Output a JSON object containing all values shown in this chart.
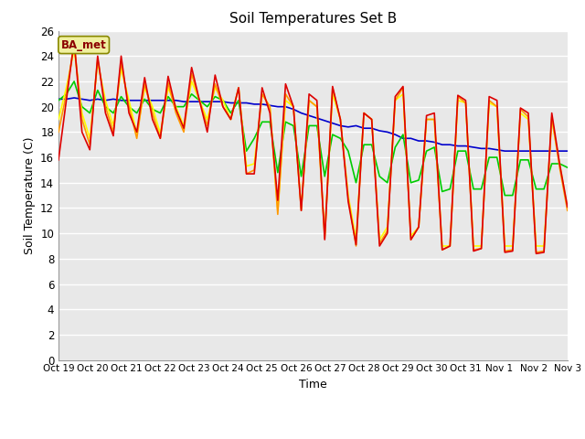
{
  "title": "Soil Temperatures Set B",
  "xlabel": "Time",
  "ylabel": "Soil Temperature (C)",
  "ylim": [
    0,
    26
  ],
  "yticks": [
    0,
    2,
    4,
    6,
    8,
    10,
    12,
    14,
    16,
    18,
    20,
    22,
    24,
    26
  ],
  "line_colors": {
    "-2cm": "#dd0000",
    "-4cm": "#ff9900",
    "-8cm": "#ffff00",
    "-16cm": "#00cc00",
    "-32cm": "#0000cc"
  },
  "legend_label": "BA_met",
  "xtick_labels": [
    "Oct 19",
    "Oct 20",
    "Oct 21",
    "Oct 22",
    "Oct 23",
    "Oct 24",
    "Oct 25",
    "Oct 26",
    "Oct 27",
    "Oct 28",
    "Oct 29",
    "Oct 30",
    "Oct 31",
    "Nov 1",
    "Nov 2",
    "Nov 3"
  ],
  "n_days": 15,
  "series": {
    "-2cm": [
      15.8,
      20.5,
      25.2,
      18.0,
      16.6,
      24.0,
      19.5,
      17.7,
      24.0,
      19.5,
      18.0,
      22.3,
      19.0,
      17.5,
      22.4,
      19.8,
      18.3,
      23.1,
      20.5,
      18.0,
      22.5,
      20.0,
      19.0,
      21.5,
      14.7,
      14.7,
      21.5,
      19.5,
      12.6,
      21.8,
      20.0,
      11.8,
      21.0,
      20.5,
      9.5,
      21.6,
      19.0,
      12.5,
      9.1,
      19.5,
      19.0,
      9.0,
      10.0,
      20.8,
      21.6,
      9.5,
      10.5,
      19.3,
      19.5,
      8.7,
      9.0,
      20.9,
      20.5,
      8.6,
      8.8,
      20.8,
      20.5,
      8.5,
      8.6,
      19.9,
      19.5,
      8.4,
      8.5,
      19.5,
      15.5,
      12.1
    ],
    "-4cm": [
      18.0,
      21.0,
      25.0,
      19.0,
      17.0,
      23.8,
      20.0,
      18.0,
      23.5,
      20.0,
      17.5,
      21.8,
      19.5,
      17.5,
      21.9,
      19.5,
      18.0,
      22.6,
      20.5,
      18.5,
      21.8,
      20.0,
      19.0,
      21.5,
      14.7,
      15.0,
      21.0,
      20.0,
      11.5,
      21.0,
      20.0,
      11.8,
      20.5,
      20.0,
      9.6,
      21.5,
      19.0,
      12.8,
      9.0,
      19.5,
      19.0,
      9.2,
      10.2,
      20.5,
      21.5,
      9.5,
      10.5,
      19.0,
      19.0,
      8.7,
      9.0,
      20.8,
      20.3,
      8.7,
      8.8,
      20.5,
      20.0,
      8.6,
      8.7,
      19.8,
      19.2,
      8.5,
      8.6,
      19.2,
      15.2,
      11.8
    ],
    "-8cm": [
      19.0,
      21.5,
      24.5,
      19.5,
      17.5,
      23.5,
      20.5,
      18.5,
      23.0,
      20.5,
      17.9,
      21.5,
      20.0,
      17.9,
      21.5,
      20.0,
      18.5,
      22.0,
      20.5,
      19.0,
      21.5,
      20.5,
      19.0,
      21.5,
      15.3,
      15.5,
      21.0,
      20.0,
      11.8,
      20.5,
      20.0,
      12.0,
      20.5,
      20.0,
      9.8,
      21.0,
      19.0,
      13.0,
      9.5,
      19.5,
      19.0,
      9.5,
      10.5,
      20.5,
      21.0,
      9.8,
      10.5,
      19.0,
      19.0,
      9.0,
      9.0,
      20.5,
      20.3,
      9.0,
      9.0,
      20.3,
      20.0,
      9.0,
      9.0,
      19.5,
      19.0,
      9.0,
      9.0,
      19.0,
      15.5,
      12.0
    ],
    "-16cm": [
      20.5,
      21.0,
      22.0,
      20.0,
      19.5,
      21.3,
      20.0,
      19.5,
      20.8,
      20.0,
      19.5,
      20.6,
      19.8,
      19.5,
      20.8,
      20.0,
      20.0,
      21.0,
      20.5,
      20.0,
      20.8,
      20.5,
      19.5,
      20.5,
      16.5,
      17.5,
      18.8,
      18.8,
      14.8,
      18.8,
      18.5,
      14.5,
      18.5,
      18.5,
      14.5,
      17.8,
      17.5,
      16.5,
      14.0,
      17.0,
      17.0,
      14.5,
      14.0,
      16.8,
      17.8,
      14.0,
      14.2,
      16.5,
      16.8,
      13.3,
      13.5,
      16.5,
      16.5,
      13.5,
      13.5,
      16.0,
      16.0,
      13.0,
      13.0,
      15.8,
      15.8,
      13.5,
      13.5,
      15.5,
      15.5,
      15.2
    ],
    "-32cm": [
      20.6,
      20.6,
      20.7,
      20.6,
      20.5,
      20.6,
      20.5,
      20.6,
      20.5,
      20.5,
      20.5,
      20.5,
      20.5,
      20.5,
      20.5,
      20.5,
      20.4,
      20.4,
      20.4,
      20.4,
      20.4,
      20.4,
      20.3,
      20.3,
      20.3,
      20.2,
      20.2,
      20.1,
      20.0,
      20.0,
      19.8,
      19.5,
      19.3,
      19.1,
      18.9,
      18.7,
      18.5,
      18.4,
      18.5,
      18.3,
      18.3,
      18.1,
      18.0,
      17.8,
      17.5,
      17.5,
      17.3,
      17.3,
      17.2,
      17.0,
      17.0,
      16.9,
      16.9,
      16.8,
      16.7,
      16.7,
      16.6,
      16.5,
      16.5,
      16.5,
      16.5,
      16.5,
      16.5,
      16.5,
      16.5,
      16.5
    ]
  }
}
